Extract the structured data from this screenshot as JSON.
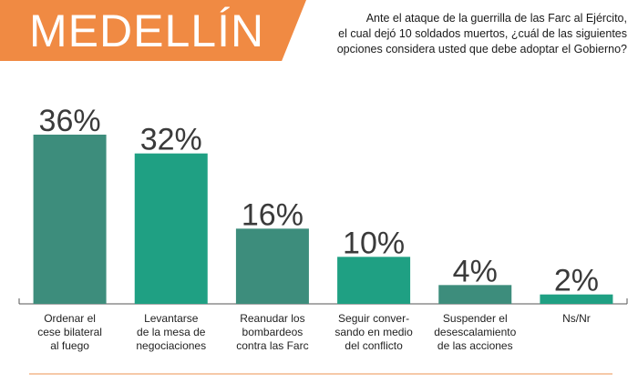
{
  "header": {
    "title": "MEDELLÍN",
    "question_lines": [
      "Ante el ataque de la guerrilla de las Farc al Ejército,",
      "el cual dejó 10 soldados muertos, ¿cuál de las siguientes",
      "opciones considera usted que debe adoptar el Gobierno?"
    ]
  },
  "colors": {
    "banner": "#f08a43",
    "bar_dark": "#3d8d7c",
    "bar_light": "#1fa083",
    "axis": "#555555",
    "footer_line": "#f6c9a8"
  },
  "chart_data": {
    "type": "bar",
    "categories": [
      [
        "Ordenar el",
        "cese bilateral",
        "al fuego"
      ],
      [
        "Levantarse",
        "de la mesa de",
        "negociaciones"
      ],
      [
        "Reanudar los",
        "bombardeos",
        "contra las Farc"
      ],
      [
        "Seguir conver-",
        "sando en medio",
        "del conflicto"
      ],
      [
        "Suspender el",
        "desescalamiento",
        "de las acciones"
      ],
      [
        "Ns/Nr"
      ]
    ],
    "values": [
      36,
      32,
      16,
      10,
      4,
      2
    ],
    "data_labels": [
      "36%",
      "32%",
      "16%",
      "10%",
      "4%",
      "2%"
    ],
    "ylim": [
      0,
      36
    ],
    "grid": false,
    "legend": "none"
  }
}
